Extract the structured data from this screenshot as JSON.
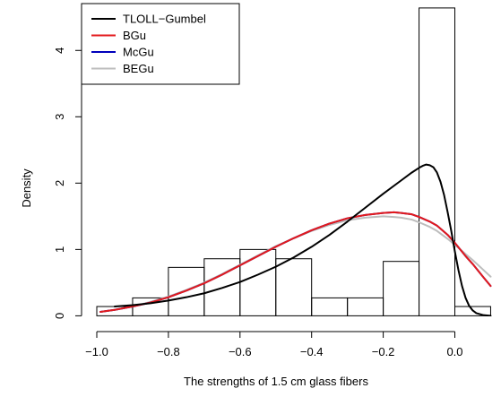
{
  "chart_data": {
    "type": "histogram-with-density-curves",
    "xlabel": "The strengths of 1.5 cm glass fibers",
    "ylabel": "Density",
    "xlim": [
      -1.0,
      0.1
    ],
    "ylim": [
      0,
      4.7
    ],
    "x_ticks": [
      -1.0,
      -0.8,
      -0.6,
      -0.4,
      -0.2,
      0.0
    ],
    "x_tick_labels": [
      "−1.0",
      "−0.8",
      "−0.6",
      "−0.4",
      "−0.2",
      "0.0"
    ],
    "y_ticks": [
      0,
      1,
      2,
      3,
      4
    ],
    "y_tick_labels": [
      "0",
      "1",
      "2",
      "3",
      "4"
    ],
    "histogram": {
      "bin_edges": [
        -1.0,
        -0.9,
        -0.8,
        -0.7,
        -0.6,
        -0.5,
        -0.4,
        -0.3,
        -0.2,
        -0.1,
        0.0,
        0.1
      ],
      "densities": [
        0.14,
        0.27,
        0.73,
        0.86,
        1.0,
        0.86,
        0.27,
        0.27,
        0.82,
        4.64,
        0.14
      ]
    },
    "legend": {
      "position": "top-left",
      "entries": [
        {
          "label": "TLOLL−Gumbel",
          "color": "#000000"
        },
        {
          "label": "BGu",
          "color": "#e31a1c"
        },
        {
          "label": "McGu",
          "color": "#0000bb"
        },
        {
          "label": "BEGu",
          "color": "#bdbdbd"
        }
      ]
    },
    "series": [
      {
        "name": "TLOLL−Gumbel",
        "color": "#000000",
        "points": [
          [
            -0.95,
            0.14
          ],
          [
            -0.9,
            0.16
          ],
          [
            -0.85,
            0.19
          ],
          [
            -0.8,
            0.23
          ],
          [
            -0.75,
            0.28
          ],
          [
            -0.7,
            0.34
          ],
          [
            -0.65,
            0.42
          ],
          [
            -0.6,
            0.51
          ],
          [
            -0.55,
            0.62
          ],
          [
            -0.5,
            0.74
          ],
          [
            -0.45,
            0.88
          ],
          [
            -0.4,
            1.04
          ],
          [
            -0.35,
            1.22
          ],
          [
            -0.3,
            1.42
          ],
          [
            -0.25,
            1.63
          ],
          [
            -0.2,
            1.84
          ],
          [
            -0.15,
            2.04
          ],
          [
            -0.12,
            2.16
          ],
          [
            -0.1,
            2.23
          ],
          [
            -0.09,
            2.26
          ],
          [
            -0.08,
            2.28
          ],
          [
            -0.07,
            2.27
          ],
          [
            -0.06,
            2.24
          ],
          [
            -0.05,
            2.16
          ],
          [
            -0.04,
            2.02
          ],
          [
            -0.03,
            1.82
          ],
          [
            -0.02,
            1.56
          ],
          [
            -0.01,
            1.28
          ],
          [
            0.0,
            0.97
          ],
          [
            0.01,
            0.69
          ],
          [
            0.02,
            0.45
          ],
          [
            0.03,
            0.27
          ],
          [
            0.04,
            0.15
          ],
          [
            0.05,
            0.08
          ],
          [
            0.06,
            0.04
          ],
          [
            0.08,
            0.01
          ],
          [
            0.1,
            0.0
          ]
        ]
      },
      {
        "name": "BGu",
        "color": "#e31a1c",
        "points": [
          [
            -0.99,
            0.06
          ],
          [
            -0.95,
            0.09
          ],
          [
            -0.9,
            0.14
          ],
          [
            -0.85,
            0.2
          ],
          [
            -0.8,
            0.28
          ],
          [
            -0.75,
            0.38
          ],
          [
            -0.7,
            0.49
          ],
          [
            -0.65,
            0.62
          ],
          [
            -0.6,
            0.76
          ],
          [
            -0.55,
            0.9
          ],
          [
            -0.5,
            1.04
          ],
          [
            -0.45,
            1.17
          ],
          [
            -0.4,
            1.29
          ],
          [
            -0.35,
            1.39
          ],
          [
            -0.3,
            1.47
          ],
          [
            -0.25,
            1.52
          ],
          [
            -0.2,
            1.55
          ],
          [
            -0.17,
            1.56
          ],
          [
            -0.15,
            1.55
          ],
          [
            -0.12,
            1.53
          ],
          [
            -0.1,
            1.49
          ],
          [
            -0.07,
            1.42
          ],
          [
            -0.05,
            1.36
          ],
          [
            -0.02,
            1.22
          ],
          [
            0.0,
            1.1
          ],
          [
            0.03,
            0.9
          ],
          [
            0.05,
            0.78
          ],
          [
            0.08,
            0.58
          ],
          [
            0.1,
            0.45
          ]
        ]
      },
      {
        "name": "McGu",
        "color": "#0000bb",
        "points": [
          [
            -0.99,
            0.06
          ],
          [
            -0.95,
            0.09
          ],
          [
            -0.9,
            0.14
          ],
          [
            -0.85,
            0.2
          ],
          [
            -0.8,
            0.28
          ],
          [
            -0.75,
            0.38
          ],
          [
            -0.7,
            0.49
          ],
          [
            -0.65,
            0.62
          ],
          [
            -0.6,
            0.76
          ],
          [
            -0.55,
            0.9
          ],
          [
            -0.5,
            1.04
          ],
          [
            -0.45,
            1.17
          ],
          [
            -0.4,
            1.29
          ],
          [
            -0.35,
            1.39
          ],
          [
            -0.3,
            1.47
          ],
          [
            -0.25,
            1.52
          ],
          [
            -0.2,
            1.55
          ],
          [
            -0.17,
            1.56
          ],
          [
            -0.15,
            1.55
          ],
          [
            -0.12,
            1.53
          ],
          [
            -0.1,
            1.49
          ],
          [
            -0.07,
            1.42
          ],
          [
            -0.05,
            1.36
          ],
          [
            -0.02,
            1.22
          ],
          [
            0.0,
            1.1
          ],
          [
            0.03,
            0.9
          ],
          [
            0.05,
            0.78
          ],
          [
            0.08,
            0.58
          ],
          [
            0.1,
            0.45
          ]
        ]
      },
      {
        "name": "BEGu",
        "color": "#bdbdbd",
        "points": [
          [
            -0.99,
            0.06
          ],
          [
            -0.95,
            0.09
          ],
          [
            -0.9,
            0.14
          ],
          [
            -0.85,
            0.21
          ],
          [
            -0.8,
            0.29
          ],
          [
            -0.75,
            0.39
          ],
          [
            -0.7,
            0.5
          ],
          [
            -0.65,
            0.63
          ],
          [
            -0.6,
            0.77
          ],
          [
            -0.55,
            0.91
          ],
          [
            -0.5,
            1.05
          ],
          [
            -0.45,
            1.17
          ],
          [
            -0.4,
            1.28
          ],
          [
            -0.35,
            1.37
          ],
          [
            -0.3,
            1.44
          ],
          [
            -0.25,
            1.48
          ],
          [
            -0.2,
            1.5
          ],
          [
            -0.17,
            1.49
          ],
          [
            -0.15,
            1.48
          ],
          [
            -0.12,
            1.45
          ],
          [
            -0.1,
            1.41
          ],
          [
            -0.07,
            1.34
          ],
          [
            -0.05,
            1.28
          ],
          [
            -0.02,
            1.16
          ],
          [
            0.0,
            1.07
          ],
          [
            0.03,
            0.93
          ],
          [
            0.05,
            0.84
          ],
          [
            0.08,
            0.69
          ],
          [
            0.1,
            0.59
          ]
        ]
      }
    ]
  }
}
